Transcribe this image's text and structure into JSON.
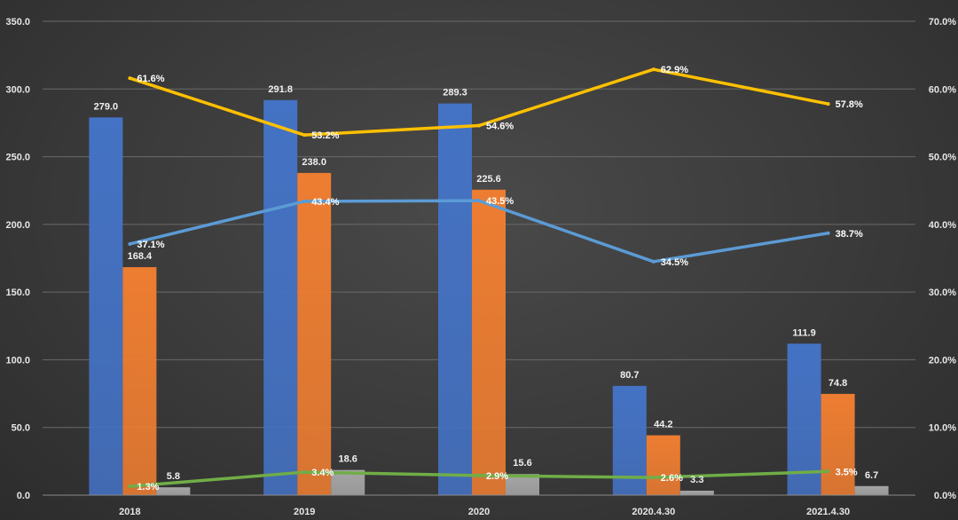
{
  "chart_data": {
    "type": "bar",
    "title": "",
    "categories": [
      "2018",
      "2019",
      "2020",
      "2020.4.30",
      "2021.4.30"
    ],
    "ylim_left": [
      0,
      350
    ],
    "ylim_right": [
      0,
      70
    ],
    "left_ticks": [
      "0.0",
      "50.0",
      "100.0",
      "150.0",
      "200.0",
      "250.0",
      "300.0",
      "350.0"
    ],
    "right_ticks": [
      "0.0%",
      "10.0%",
      "20.0%",
      "30.0%",
      "40.0%",
      "50.0%",
      "60.0%",
      "70.0%"
    ],
    "grid": true,
    "bar_series": [
      {
        "values": [
          279.0,
          291.8,
          289.3,
          80.7,
          111.9
        ],
        "labels": [
          "279.0",
          "291.8",
          "289.3",
          "80.7",
          "111.9"
        ],
        "color": "#4472c4"
      },
      {
        "values": [
          168.4,
          238.0,
          225.6,
          44.2,
          74.8
        ],
        "labels": [
          "168.4",
          "238.0",
          "225.6",
          "44.2",
          "74.8"
        ],
        "color": "#ed7d31"
      },
      {
        "values": [
          5.8,
          18.6,
          15.6,
          3.3,
          6.7
        ],
        "labels": [
          "5.8",
          "18.6",
          "15.6",
          "3.3",
          "6.7"
        ],
        "color": "#a5a5a5"
      }
    ],
    "line_series": [
      {
        "values": [
          61.6,
          53.2,
          54.6,
          62.9,
          57.8
        ],
        "labels": [
          "61.6%",
          "53.2%",
          "54.6%",
          "62.9%",
          "57.8%"
        ],
        "color": "#ffc000"
      },
      {
        "values": [
          37.1,
          43.4,
          43.5,
          34.5,
          38.7
        ],
        "labels": [
          "37.1%",
          "43.4%",
          "43.5%",
          "34.5%",
          "38.7%"
        ],
        "color": "#5b9bd5"
      },
      {
        "values": [
          1.3,
          3.4,
          2.9,
          2.6,
          3.5
        ],
        "labels": [
          "1.3%",
          "3.4%",
          "2.9%",
          "2.6%",
          "3.5%"
        ],
        "color": "#70ad47"
      }
    ]
  }
}
